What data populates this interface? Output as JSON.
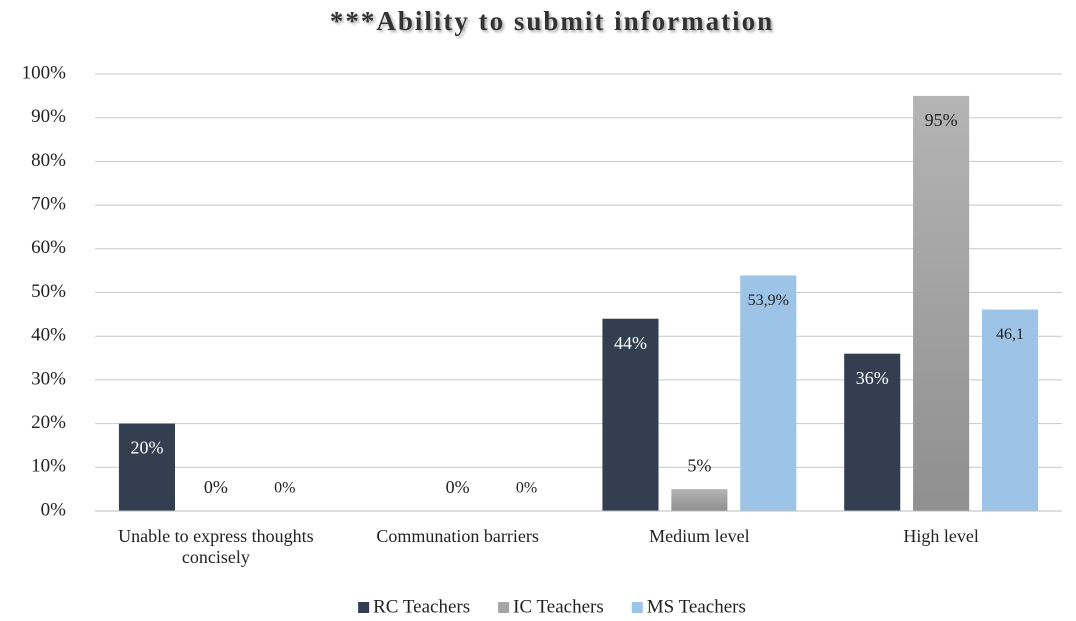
{
  "chart_data": {
    "type": "bar",
    "title": "***Ability to submit information",
    "categories": [
      "Unable to express thoughts concisely",
      "Communation barriers",
      "Medium level",
      "High level"
    ],
    "series": [
      {
        "name": "RC Teachers",
        "color": "#333f50",
        "values": [
          20,
          null,
          44,
          36
        ],
        "value_labels": [
          "20%",
          null,
          "44%",
          "36%"
        ]
      },
      {
        "name": "IC Teachers",
        "color": "#a5a5a5",
        "values": [
          0,
          0,
          5,
          95
        ],
        "value_labels": [
          "0%",
          "0%",
          "5%",
          "95%"
        ]
      },
      {
        "name": "MS Teachers",
        "color": "#9dc3e6",
        "values": [
          0,
          0,
          53.9,
          46.1
        ],
        "value_labels": [
          "0%",
          "0%",
          "53,9%",
          "46,1"
        ]
      }
    ],
    "ylim": [
      0,
      100
    ],
    "yticks": [
      {
        "value": 0,
        "label": "0%"
      },
      {
        "value": 10,
        "label": "10%"
      },
      {
        "value": 20,
        "label": "20%"
      },
      {
        "value": 30,
        "label": "30%"
      },
      {
        "value": 40,
        "label": "40%"
      },
      {
        "value": 50,
        "label": "50%"
      },
      {
        "value": 60,
        "label": "60%"
      },
      {
        "value": 70,
        "label": "70%"
      },
      {
        "value": 80,
        "label": "80%"
      },
      {
        "value": 90,
        "label": "90%"
      },
      {
        "value": 100,
        "label": "100%"
      }
    ],
    "grid": true,
    "legend": "bottom"
  }
}
